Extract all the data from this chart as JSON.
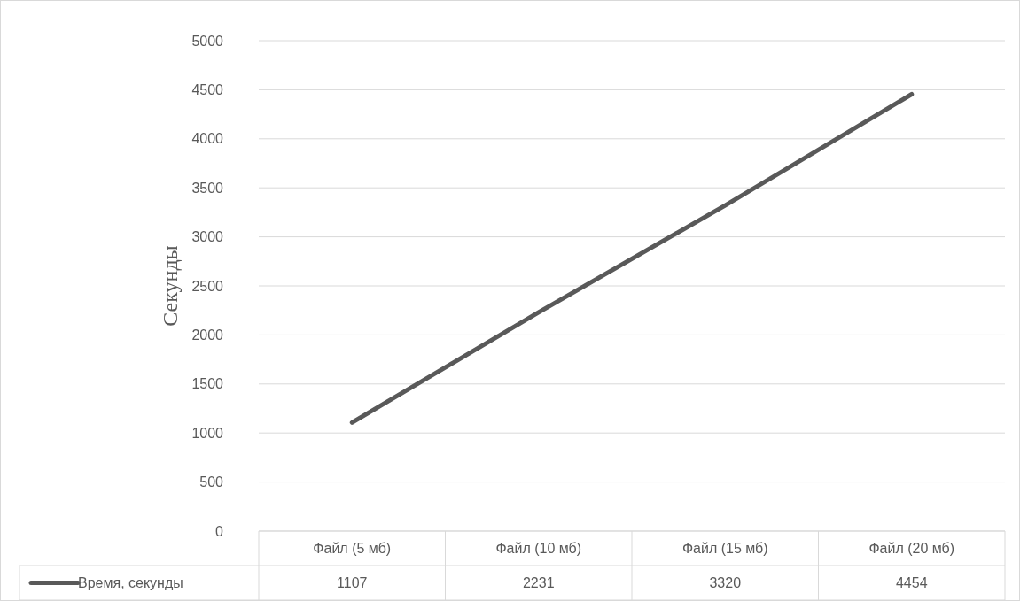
{
  "chart_data": {
    "type": "line",
    "ylabel": "Секунды",
    "categories": [
      "Файл (5 мб)",
      "Файл (10 мб)",
      "Файл (15 мб)",
      "Файл (20 мб)"
    ],
    "series": [
      {
        "name": "Время, секунды",
        "color": "#595959",
        "values": [
          1107,
          2231,
          3320,
          4454
        ]
      }
    ],
    "ylim": [
      0,
      5000
    ],
    "yticks": [
      0,
      500,
      1000,
      1500,
      2000,
      2500,
      3000,
      3500,
      4000,
      4500,
      5000
    ],
    "grid": "y",
    "legend": "bottom",
    "data_labels": true,
    "marker": "none",
    "line_style": "solid"
  }
}
